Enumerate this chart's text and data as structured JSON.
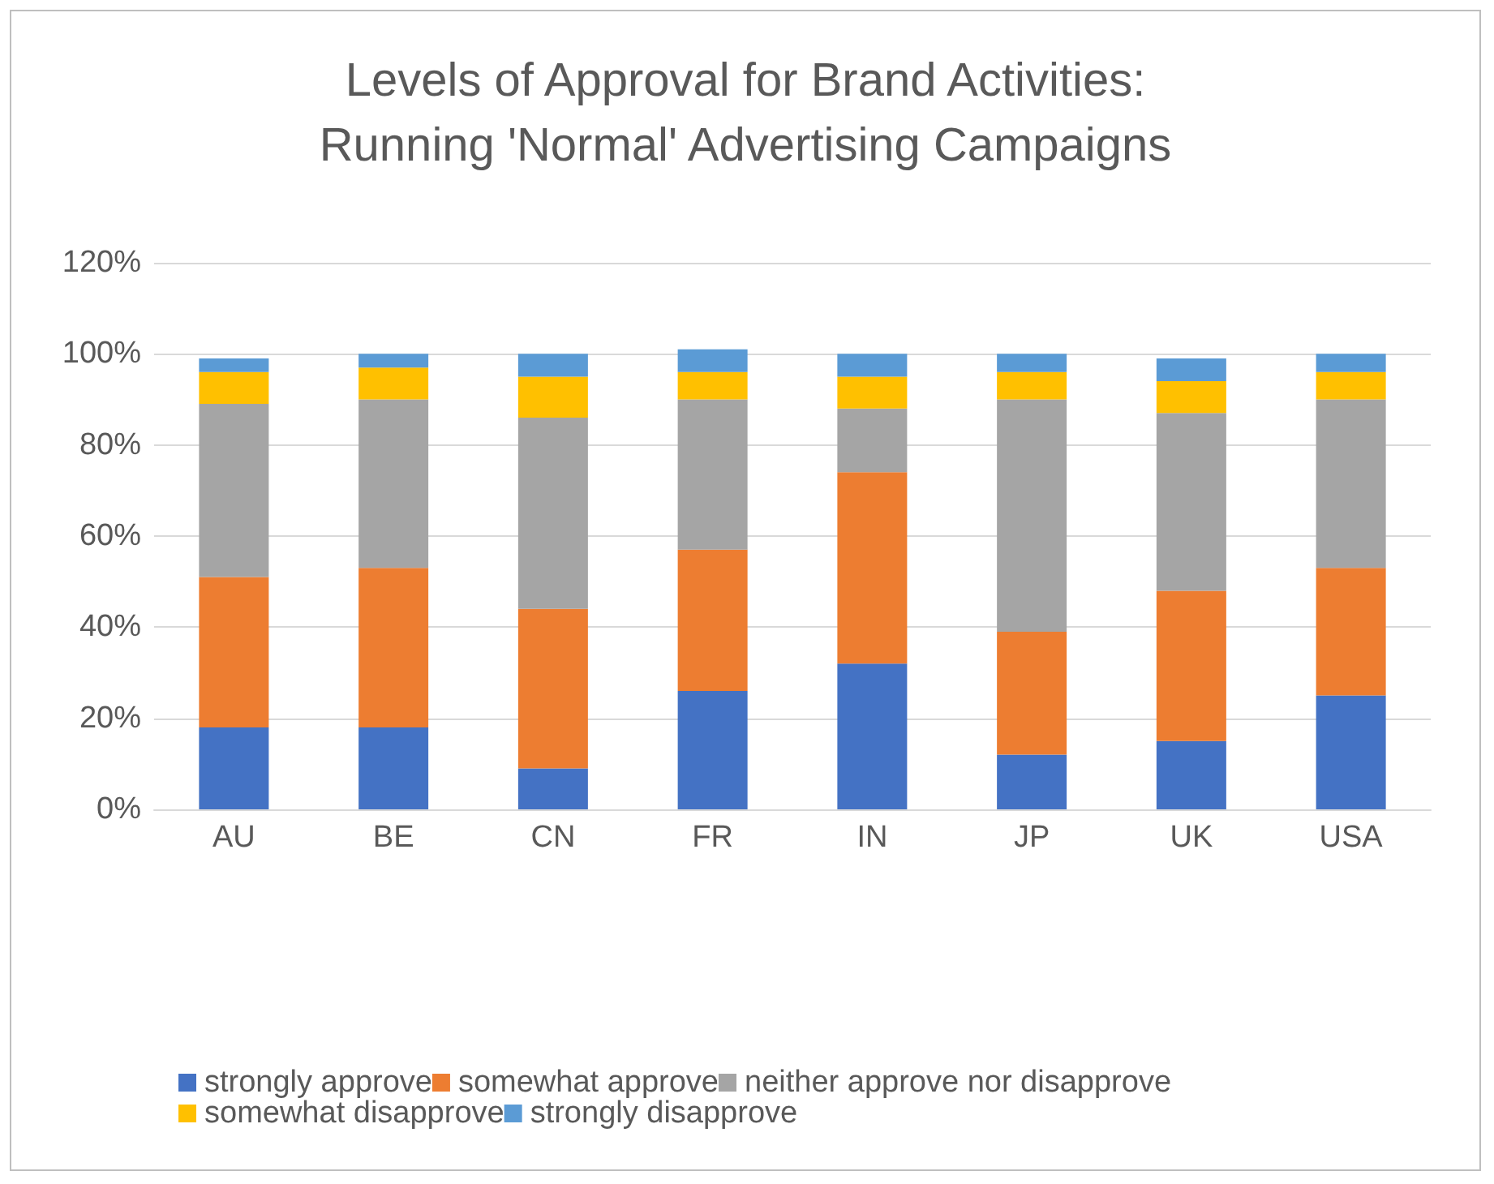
{
  "chart_data": {
    "type": "bar",
    "stacked": true,
    "title": "Levels of Approval for Brand Activities:\nRunning 'Normal' Advertising Campaigns",
    "categories": [
      "AU",
      "BE",
      "CN",
      "FR",
      "IN",
      "JP",
      "UK",
      "USA"
    ],
    "series": [
      {
        "name": "strongly approve",
        "color": "#4472c4",
        "values": [
          18,
          18,
          9,
          26,
          32,
          12,
          15,
          25
        ]
      },
      {
        "name": "somewhat approve",
        "color": "#ed7d31",
        "values": [
          33,
          35,
          35,
          31,
          42,
          27,
          33,
          28
        ]
      },
      {
        "name": "neither approve nor disapprove",
        "color": "#a5a5a5",
        "values": [
          38,
          37,
          42,
          33,
          14,
          51,
          39,
          37
        ]
      },
      {
        "name": "somewhat disapprove",
        "color": "#ffc000",
        "values": [
          7,
          7,
          9,
          6,
          7,
          6,
          7,
          6
        ]
      },
      {
        "name": "strongly disapprove",
        "color": "#5b9bd5",
        "values": [
          3,
          3,
          5,
          5,
          5,
          4,
          5,
          4
        ]
      }
    ],
    "ylim": [
      0,
      120
    ],
    "yticks": [
      {
        "value": 0,
        "label": "0%"
      },
      {
        "value": 20,
        "label": "20%"
      },
      {
        "value": 40,
        "label": "40%"
      },
      {
        "value": 60,
        "label": "60%"
      },
      {
        "value": 80,
        "label": "80%"
      },
      {
        "value": 100,
        "label": "100%"
      },
      {
        "value": 120,
        "label": "120%"
      }
    ],
    "grid": "y",
    "legend": "bottom"
  }
}
